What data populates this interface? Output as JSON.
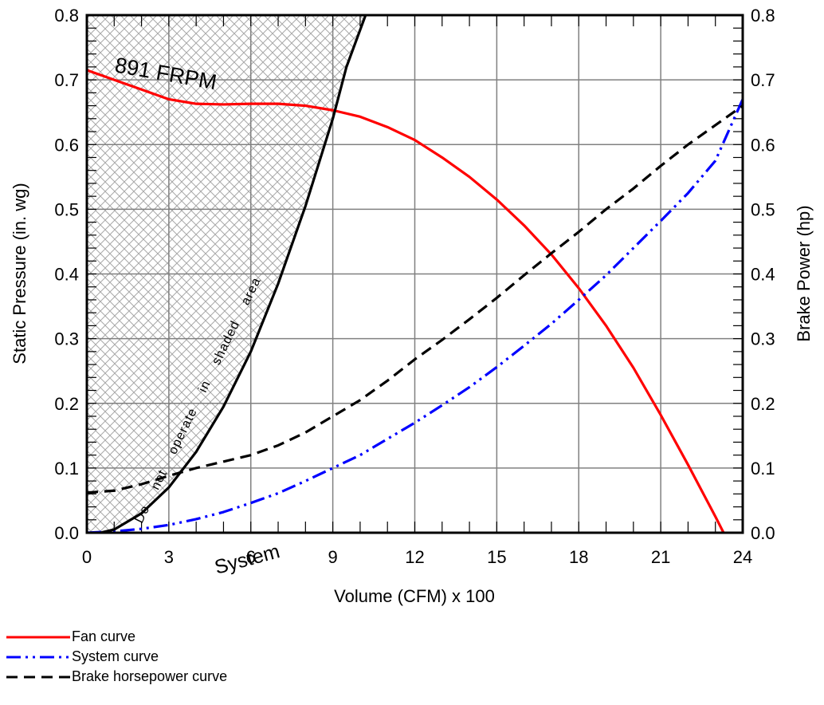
{
  "chart_data": {
    "type": "line",
    "xlabel": "Volume (CFM) x 100",
    "ylabel": "Static Pressure (in. wg)",
    "y2label": "Brake Power (hp)",
    "xlim": [
      0,
      24
    ],
    "ylim": [
      0,
      0.8
    ],
    "y2lim": [
      0,
      0.8
    ],
    "x_ticks": [
      "0",
      "3",
      "6",
      "9",
      "12",
      "15",
      "18",
      "21",
      "24"
    ],
    "y_ticks": [
      "0.0",
      "0.1",
      "0.2",
      "0.3",
      "0.4",
      "0.5",
      "0.6",
      "0.7",
      "0.8"
    ],
    "y2_ticks": [
      "0.0",
      "0.1",
      "0.2",
      "0.3",
      "0.4",
      "0.5",
      "0.6",
      "0.7",
      "0.8"
    ],
    "grid": true,
    "colors": {
      "fan": "#ff0000",
      "system": "#0000ff",
      "bhp": "#000000",
      "boundary": "#000000"
    },
    "series": [
      {
        "name": "Fan curve",
        "style": "solid",
        "x": [
          0,
          1,
          2,
          3,
          4,
          5,
          6,
          7,
          8,
          9,
          10,
          11,
          12,
          13,
          14,
          15,
          16,
          17,
          18,
          19,
          20,
          21,
          22,
          23,
          23.3
        ],
        "y": [
          0.715,
          0.7,
          0.685,
          0.67,
          0.663,
          0.662,
          0.663,
          0.663,
          0.66,
          0.653,
          0.643,
          0.627,
          0.607,
          0.58,
          0.55,
          0.515,
          0.475,
          0.43,
          0.378,
          0.32,
          0.255,
          0.182,
          0.105,
          0.025,
          0.0
        ]
      },
      {
        "name": "System curve",
        "style": "dash-dot-dot",
        "x": [
          0,
          1,
          2,
          3,
          4,
          5,
          6,
          7,
          8,
          9,
          10,
          11,
          12,
          13,
          14,
          15,
          16,
          17,
          18,
          19,
          20,
          21,
          22,
          23,
          24
        ],
        "y": [
          0.0,
          0.002,
          0.006,
          0.012,
          0.021,
          0.032,
          0.046,
          0.061,
          0.08,
          0.1,
          0.12,
          0.145,
          0.17,
          0.197,
          0.225,
          0.256,
          0.289,
          0.323,
          0.36,
          0.398,
          0.44,
          0.482,
          0.525,
          0.575,
          0.67
        ]
      },
      {
        "name": "Brake horsepower curve",
        "style": "dashed",
        "x": [
          0,
          1,
          2,
          3,
          4,
          5,
          6,
          7,
          8,
          9,
          10,
          11,
          12,
          13,
          14,
          15,
          16,
          17,
          18,
          19,
          20,
          21,
          22,
          23,
          24
        ],
        "y": [
          0.062,
          0.065,
          0.075,
          0.088,
          0.1,
          0.11,
          0.12,
          0.135,
          0.155,
          0.18,
          0.205,
          0.235,
          0.268,
          0.298,
          0.33,
          0.363,
          0.398,
          0.432,
          0.465,
          0.5,
          0.532,
          0.567,
          0.6,
          0.63,
          0.66
        ]
      }
    ],
    "boundary_curve": {
      "x": [
        0.5,
        1,
        2,
        3,
        4,
        5,
        6,
        7,
        8,
        9,
        9.5,
        10.2
      ],
      "y": [
        0.0,
        0.005,
        0.03,
        0.07,
        0.125,
        0.195,
        0.28,
        0.385,
        0.505,
        0.64,
        0.72,
        0.8
      ]
    },
    "annotations": {
      "rpm": "891 FRPM",
      "system": "System",
      "shaded_warning": "Do not operate in shaded area"
    }
  }
}
